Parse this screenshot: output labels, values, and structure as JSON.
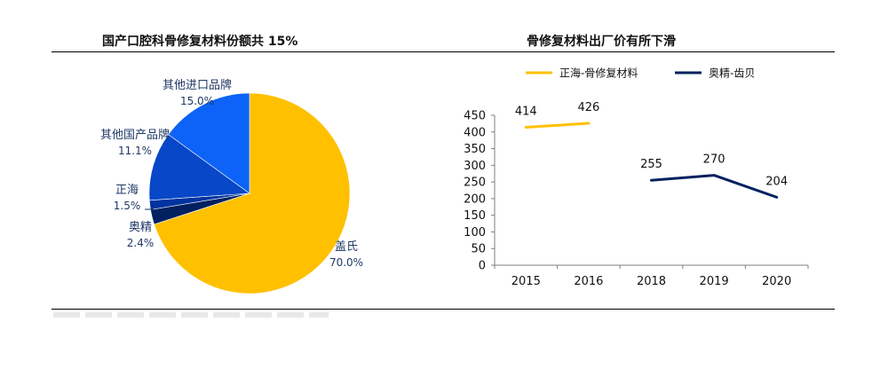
{
  "left_title": "国产口腔科骨修复材料份额共 15%",
  "right_title": "骨修复材料出厂价有所下滑",
  "chart_data": [
    {
      "type": "pie",
      "title": "国产口腔科骨修复材料份额共 15%",
      "slices": [
        {
          "label": "盖氏",
          "value_label": "70.0%",
          "value": 70.0,
          "color": "#FFC000"
        },
        {
          "label": "奥精",
          "value_label": "2.4%",
          "value": 2.4,
          "color": "#002060"
        },
        {
          "label": "正海",
          "value_label": "1.5%",
          "value": 1.5,
          "color": "#0033A0"
        },
        {
          "label": "其他国产品牌",
          "value_label": "11.1%",
          "value": 11.1,
          "color": "#0747C8"
        },
        {
          "label": "其他进口品牌",
          "value_label": "15.0%",
          "value": 15.0,
          "color": "#0D63F7"
        }
      ]
    },
    {
      "type": "line",
      "title": "骨修复材料出厂价有所下滑",
      "categories": [
        "2015",
        "2016",
        "2018",
        "2019",
        "2020"
      ],
      "ylim": [
        0,
        450
      ],
      "yticks": [
        "0",
        "50",
        "100",
        "150",
        "200",
        "250",
        "300",
        "350",
        "400",
        "450"
      ],
      "grid": false,
      "legend_position": "top",
      "series": [
        {
          "name": "正海-骨修复材料",
          "color": "#FFC000",
          "values": [
            414,
            426,
            null,
            null,
            null
          ],
          "labels": [
            "414",
            "426",
            "",
            "",
            ""
          ]
        },
        {
          "name": "奥精-齿贝",
          "color": "#002060",
          "values": [
            null,
            null,
            255,
            270,
            204
          ],
          "labels": [
            "",
            "",
            "255",
            "270",
            "204"
          ]
        }
      ]
    }
  ]
}
